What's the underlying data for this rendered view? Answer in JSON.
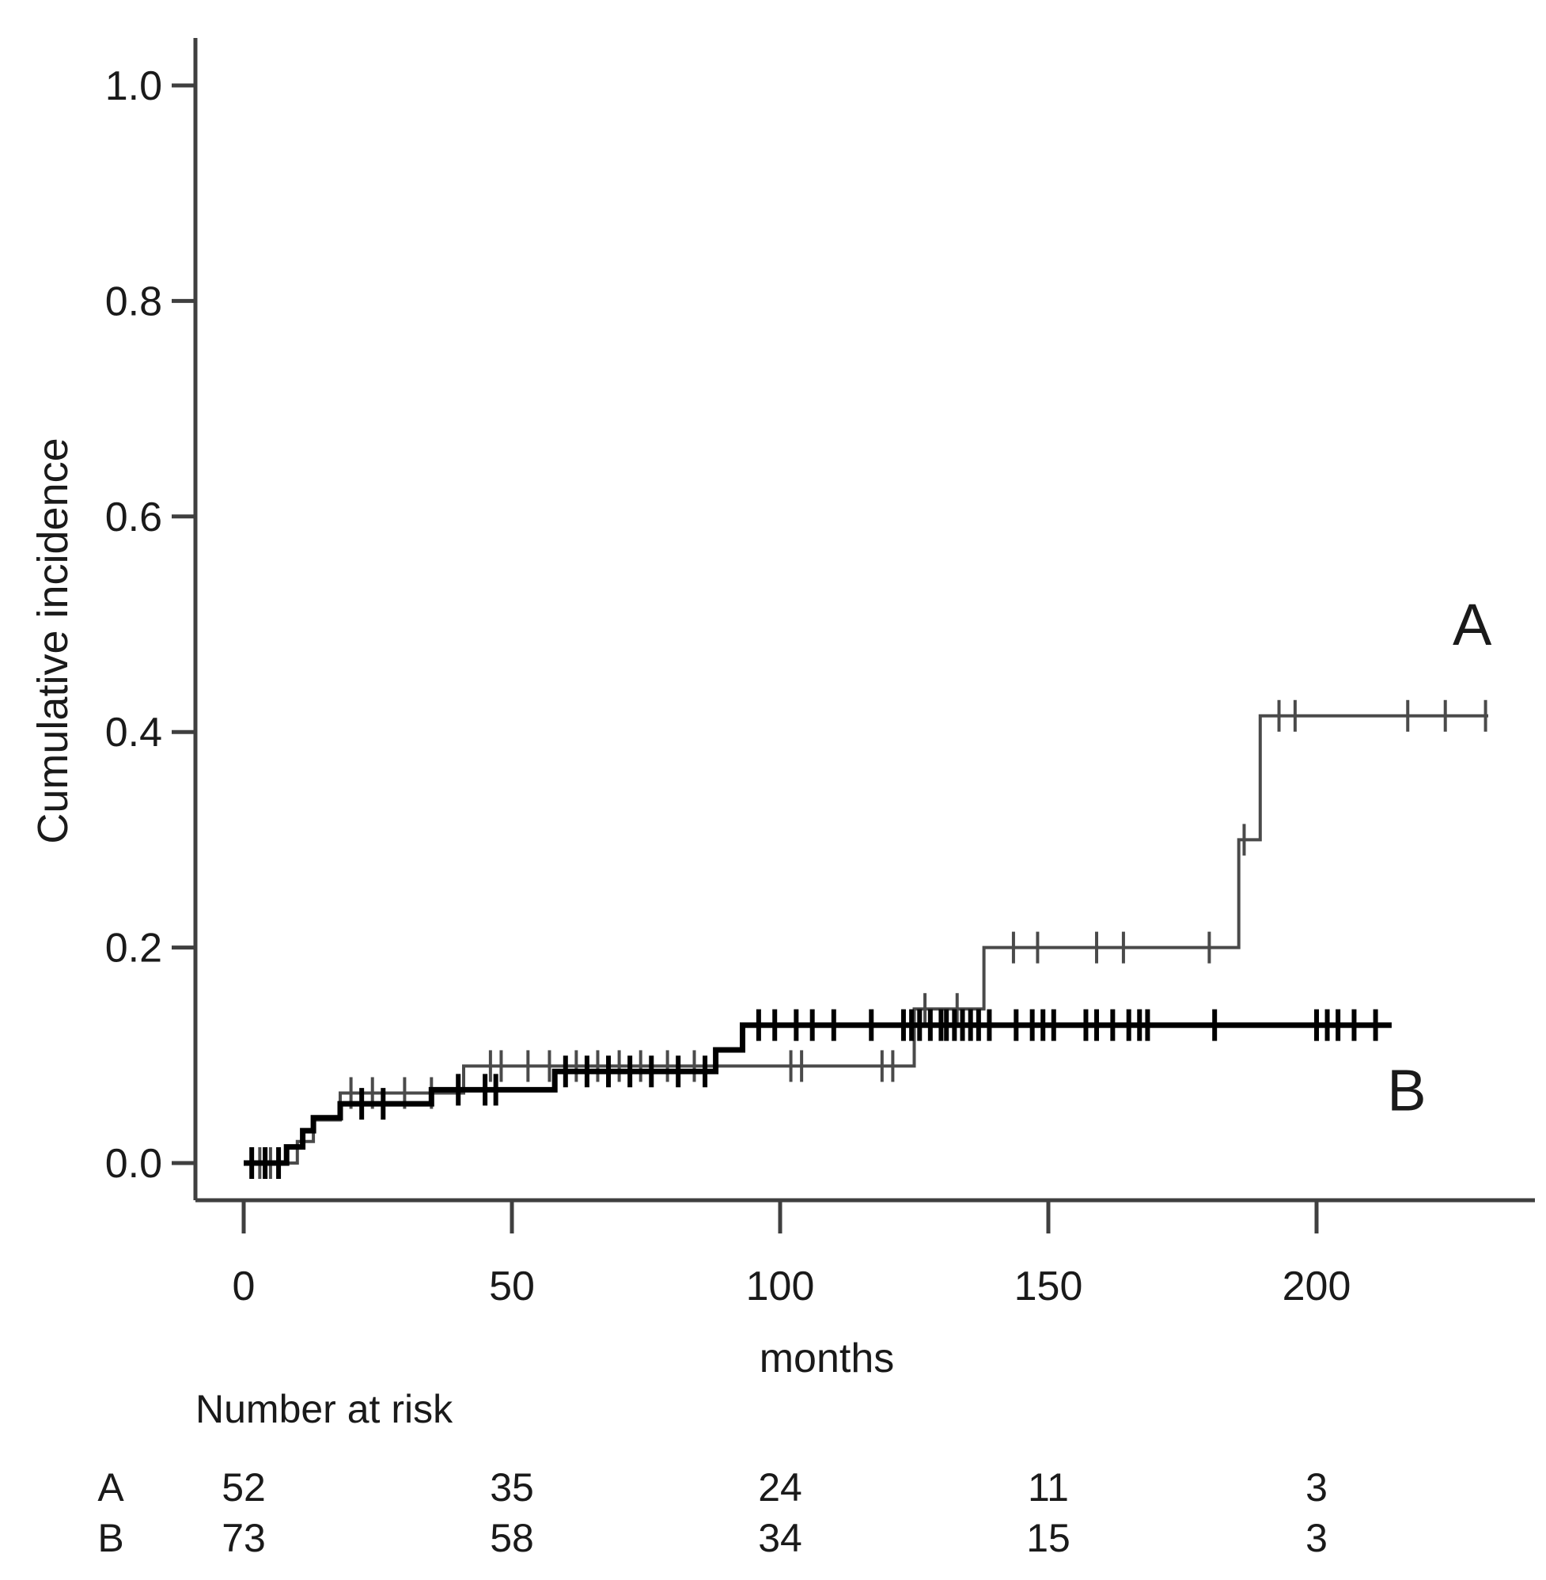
{
  "figure": {
    "background": "#ffffff",
    "axis_color": "#3f3f3f",
    "text_color": "#1a1a1a"
  },
  "chart_data": {
    "type": "line",
    "subtype": "step-function-cumulative-incidence",
    "title": "",
    "xlabel": "months",
    "ylabel": "Cumulative incidence",
    "xlim": [
      0,
      240
    ],
    "ylim": [
      0.0,
      1.05
    ],
    "grid": false,
    "legend_position": "curve-end-annotations",
    "x_ticks": [
      0,
      50,
      100,
      150,
      200
    ],
    "x_tick_labels": [
      "0",
      "50",
      "100",
      "150",
      "200"
    ],
    "y_ticks": [
      0.0,
      0.2,
      0.4,
      0.6,
      0.8,
      1.0
    ],
    "y_tick_labels": [
      "0.0",
      "0.2",
      "0.4",
      "0.6",
      "0.8",
      "1.0"
    ],
    "series": [
      {
        "name": "A",
        "color": "#4a4a4a",
        "stroke_width": 4,
        "label_pos": [
          229,
          0.5
        ],
        "steps": [
          [
            0,
            0
          ],
          [
            10,
            0
          ],
          [
            10,
            0.02
          ],
          [
            13,
            0.02
          ],
          [
            13,
            0.04
          ],
          [
            18,
            0.04
          ],
          [
            18,
            0.065
          ],
          [
            41,
            0.065
          ],
          [
            41,
            0.09
          ],
          [
            125,
            0.09
          ],
          [
            125,
            0.143
          ],
          [
            138,
            0.143
          ],
          [
            138,
            0.2
          ],
          [
            185.5,
            0.2
          ],
          [
            185.5,
            0.3
          ],
          [
            189.5,
            0.3
          ],
          [
            189.5,
            0.415
          ],
          [
            232,
            0.415
          ]
        ],
        "censor_months": [
          3,
          5,
          20,
          24,
          30,
          35,
          46,
          48,
          53,
          57,
          62,
          66,
          70,
          74,
          79,
          84,
          102,
          104,
          119,
          121,
          127,
          133,
          143.5,
          148,
          159,
          164,
          180,
          186.5,
          193,
          196,
          217,
          224,
          231.5
        ]
      },
      {
        "name": "B",
        "color": "#000000",
        "stroke_width": 7,
        "label_pos": [
          216.8,
          0.068
        ],
        "steps": [
          [
            0,
            0
          ],
          [
            8,
            0
          ],
          [
            8,
            0.015
          ],
          [
            11,
            0.015
          ],
          [
            11,
            0.03
          ],
          [
            13,
            0.03
          ],
          [
            13,
            0.042
          ],
          [
            18,
            0.042
          ],
          [
            18,
            0.055
          ],
          [
            35,
            0.055
          ],
          [
            35,
            0.068
          ],
          [
            58,
            0.068
          ],
          [
            58,
            0.085
          ],
          [
            88,
            0.085
          ],
          [
            88,
            0.105
          ],
          [
            93,
            0.105
          ],
          [
            93,
            0.128
          ],
          [
            214,
            0.128
          ]
        ],
        "censor_months": [
          1.5,
          4,
          6.5,
          22,
          26,
          40,
          45,
          47,
          60,
          64,
          68,
          72,
          76,
          81,
          86,
          96,
          99,
          103,
          106,
          110,
          117,
          123,
          124.5,
          126,
          128,
          130,
          131,
          132.5,
          134,
          135.5,
          137,
          139,
          144,
          147,
          149,
          151,
          157,
          159,
          162,
          165,
          167,
          168.5,
          181,
          200,
          202,
          204,
          207,
          211
        ]
      }
    ],
    "number_at_risk": {
      "heading": "Number at risk",
      "time_points": [
        0,
        50,
        100,
        150,
        200
      ],
      "rows": [
        {
          "label": "A",
          "counts": [
            "52",
            "35",
            "24",
            "11",
            "3"
          ]
        },
        {
          "label": "B",
          "counts": [
            "73",
            "58",
            "34",
            "15",
            "3"
          ]
        }
      ]
    }
  }
}
